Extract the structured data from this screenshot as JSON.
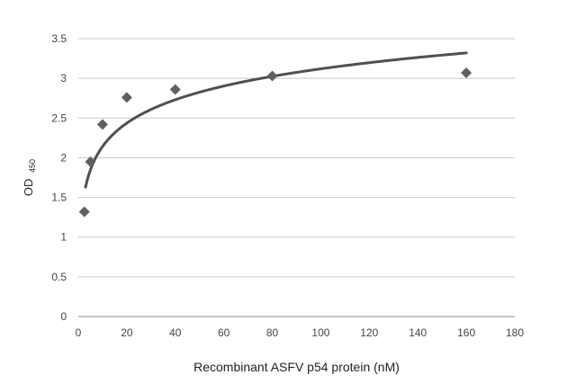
{
  "chart_data": {
    "type": "scatter",
    "xlabel": "Recombinant ASFV p54 protein (nM)",
    "ylabel": "OD",
    "ylabel_subscript": "450",
    "xlim": [
      0,
      180
    ],
    "ylim": [
      0,
      3.5
    ],
    "x_ticks": [
      "0",
      "20",
      "40",
      "60",
      "80",
      "100",
      "120",
      "140",
      "160",
      "180"
    ],
    "y_ticks": [
      "0",
      "0.5",
      "1",
      "1.5",
      "2",
      "2.5",
      "3",
      "3.5"
    ],
    "grid": true,
    "legend": "none",
    "marker": "diamond",
    "colors": {
      "marker": "#606060",
      "trendline": "#505050",
      "grid": "#c8c8c8"
    },
    "series": [
      {
        "x": [
          2.5,
          5,
          10,
          20,
          40,
          80,
          160
        ],
        "y": [
          1.32,
          1.95,
          2.42,
          2.76,
          2.86,
          3.03,
          3.07
        ]
      }
    ],
    "trendline": {
      "type": "logarithmic",
      "x_range": [
        3,
        160
      ],
      "y_range": [
        1.63,
        3.32
      ]
    }
  }
}
